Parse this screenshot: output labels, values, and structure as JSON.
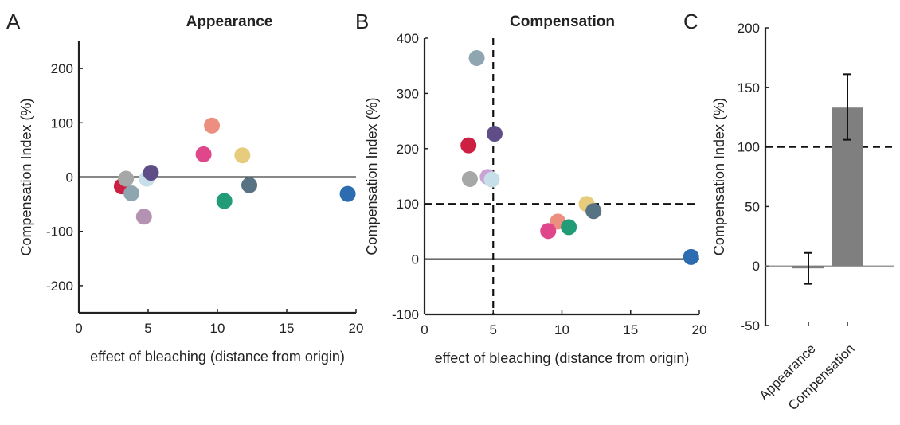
{
  "chart_data": [
    {
      "panel": "A",
      "type": "scatter",
      "title": "Appearance",
      "xlabel": "effect of bleaching (distance from origin)",
      "ylabel": "Compensation Index (%)",
      "xlim": [
        0,
        20
      ],
      "ylim": [
        -250,
        250
      ],
      "xticks": [
        0,
        5,
        10,
        15,
        20
      ],
      "yticks": [
        -200,
        -100,
        0,
        100,
        200
      ],
      "ref_lines": [
        {
          "orientation": "h",
          "value": 0,
          "style": "solid"
        }
      ],
      "points": [
        {
          "x": 3.1,
          "y": -17,
          "color": "#cc1f41"
        },
        {
          "x": 3.4,
          "y": -3,
          "color": "#a6a8a7"
        },
        {
          "x": 3.8,
          "y": -30,
          "color": "#8fa6b1"
        },
        {
          "x": 4.7,
          "y": -73,
          "color": "#b592b2"
        },
        {
          "x": 4.9,
          "y": -3,
          "color": "#c6dfe8"
        },
        {
          "x": 5.2,
          "y": 8,
          "color": "#5e4d86"
        },
        {
          "x": 9.0,
          "y": 42,
          "color": "#e0478a"
        },
        {
          "x": 9.6,
          "y": 95,
          "color": "#ed8f80"
        },
        {
          "x": 10.5,
          "y": -44,
          "color": "#219c76"
        },
        {
          "x": 11.8,
          "y": 40,
          "color": "#e6cc7c"
        },
        {
          "x": 12.3,
          "y": -15,
          "color": "#577283"
        },
        {
          "x": 19.4,
          "y": -31,
          "color": "#2e6cb2"
        }
      ]
    },
    {
      "panel": "B",
      "type": "scatter",
      "title": "Compensation",
      "xlabel": "effect of bleaching (distance from origin)",
      "ylabel": "Compensation Index (%)",
      "xlim": [
        0,
        20
      ],
      "ylim": [
        -100,
        400
      ],
      "xticks": [
        0,
        5,
        10,
        15,
        20
      ],
      "yticks": [
        -100,
        0,
        100,
        200,
        300,
        400
      ],
      "ref_lines": [
        {
          "orientation": "h",
          "value": 0,
          "style": "solid"
        },
        {
          "orientation": "h",
          "value": 100,
          "style": "dashed"
        },
        {
          "orientation": "v",
          "value": 5,
          "style": "dashed"
        }
      ],
      "points": [
        {
          "x": 3.8,
          "y": 364,
          "color": "#8fa6b1"
        },
        {
          "x": 3.2,
          "y": 206,
          "color": "#cc1f41"
        },
        {
          "x": 5.1,
          "y": 227,
          "color": "#5e4d86"
        },
        {
          "x": 4.6,
          "y": 149,
          "color": "#c9a3d4"
        },
        {
          "x": 3.3,
          "y": 145,
          "color": "#a6a8a7"
        },
        {
          "x": 4.9,
          "y": 144,
          "color": "#c6dfe8"
        },
        {
          "x": 11.8,
          "y": 100,
          "color": "#e6cc7c"
        },
        {
          "x": 12.3,
          "y": 87,
          "color": "#577283"
        },
        {
          "x": 9.7,
          "y": 68,
          "color": "#ed8f80"
        },
        {
          "x": 10.5,
          "y": 58,
          "color": "#219c76"
        },
        {
          "x": 9.0,
          "y": 51,
          "color": "#e0478a"
        },
        {
          "x": 19.4,
          "y": 4,
          "color": "#2e6cb2"
        }
      ]
    },
    {
      "panel": "C",
      "type": "bar",
      "categories": [
        "Appearance",
        "Compensation"
      ],
      "values": [
        -2,
        133
      ],
      "error_bars": [
        [
          -15,
          11
        ],
        [
          106,
          161
        ]
      ],
      "ylabel": "Compensation Index (%)",
      "ylim": [
        -50,
        200
      ],
      "yticks": [
        -50,
        0,
        50,
        100,
        150,
        200
      ],
      "bar_color": "#7f7f7f",
      "ref_lines": [
        {
          "orientation": "h",
          "value": 0,
          "style": "solid"
        },
        {
          "orientation": "h",
          "value": 100,
          "style": "dashed"
        }
      ]
    }
  ]
}
